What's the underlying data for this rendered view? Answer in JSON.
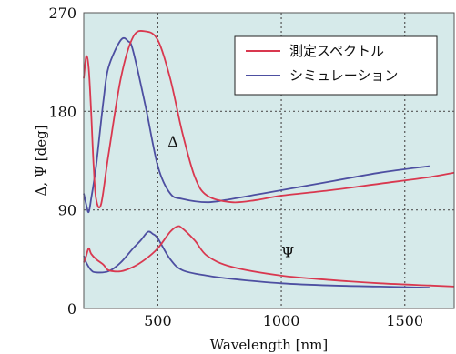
{
  "chart_data": {
    "type": "line",
    "xlabel": "Wavelength [nm]",
    "ylabel": "Δ, Ψ [deg]",
    "xlim": [
      200,
      1700
    ],
    "ylim": [
      0,
      270
    ],
    "xticks": [
      500,
      1000,
      1500
    ],
    "yticks": [
      0,
      90,
      180,
      270
    ],
    "grid": true,
    "legend_position": "top-right",
    "background_color": "#d6eaea",
    "annotations": [
      {
        "text": "Δ",
        "x": 540,
        "y": 148
      },
      {
        "text": "Ψ",
        "x": 1000,
        "y": 47
      }
    ],
    "series": [
      {
        "name": "測定スペクトル",
        "color": "#d9384f",
        "curves": [
          {
            "id": "delta",
            "x": [
              200,
              210,
              220,
              230,
              240,
              250,
              270,
              300,
              350,
              400,
              450,
              500,
              550,
              600,
              650,
              700,
              800,
              900,
              1000,
              1200,
              1400,
              1600,
              1700
            ],
            "y": [
              210,
              230,
              220,
              180,
              130,
              100,
              95,
              140,
              210,
              248,
              253,
              245,
              210,
              160,
              120,
              103,
              97,
              99,
              103,
              108,
              114,
              120,
              124
            ]
          },
          {
            "id": "psi",
            "x": [
              200,
              210,
              220,
              230,
              250,
              280,
              300,
              350,
              400,
              450,
              500,
              550,
              580,
              600,
              650,
              700,
              800,
              1000,
              1200,
              1400,
              1600,
              1700
            ],
            "y": [
              42,
              48,
              55,
              50,
              45,
              40,
              35,
              34,
              38,
              45,
              55,
              70,
              75,
              73,
              62,
              48,
              38,
              30,
              26,
              23,
              21,
              20
            ]
          }
        ]
      },
      {
        "name": "シミュレーション",
        "color": "#4d4fa1",
        "curves": [
          {
            "id": "delta",
            "x": [
              200,
              210,
              220,
              230,
              250,
              280,
              300,
              350,
              380,
              400,
              450,
              500,
              550,
              600,
              700,
              800,
              900,
              1000,
              1200,
              1400,
              1600
            ],
            "y": [
              105,
              95,
              88,
              100,
              130,
              190,
              220,
              245,
              244,
              235,
              185,
              130,
              105,
              100,
              97,
              100,
              104,
              108,
              116,
              124,
              130
            ]
          },
          {
            "id": "psi",
            "x": [
              200,
              210,
              230,
              250,
              300,
              350,
              400,
              430,
              460,
              480,
              500,
              550,
              600,
              700,
              800,
              1000,
              1200,
              1400,
              1600
            ],
            "y": [
              48,
              42,
              35,
              33,
              34,
              42,
              55,
              62,
              70,
              68,
              64,
              45,
              35,
              30,
              27,
              23,
              21,
              20,
              19
            ]
          }
        ]
      }
    ]
  }
}
